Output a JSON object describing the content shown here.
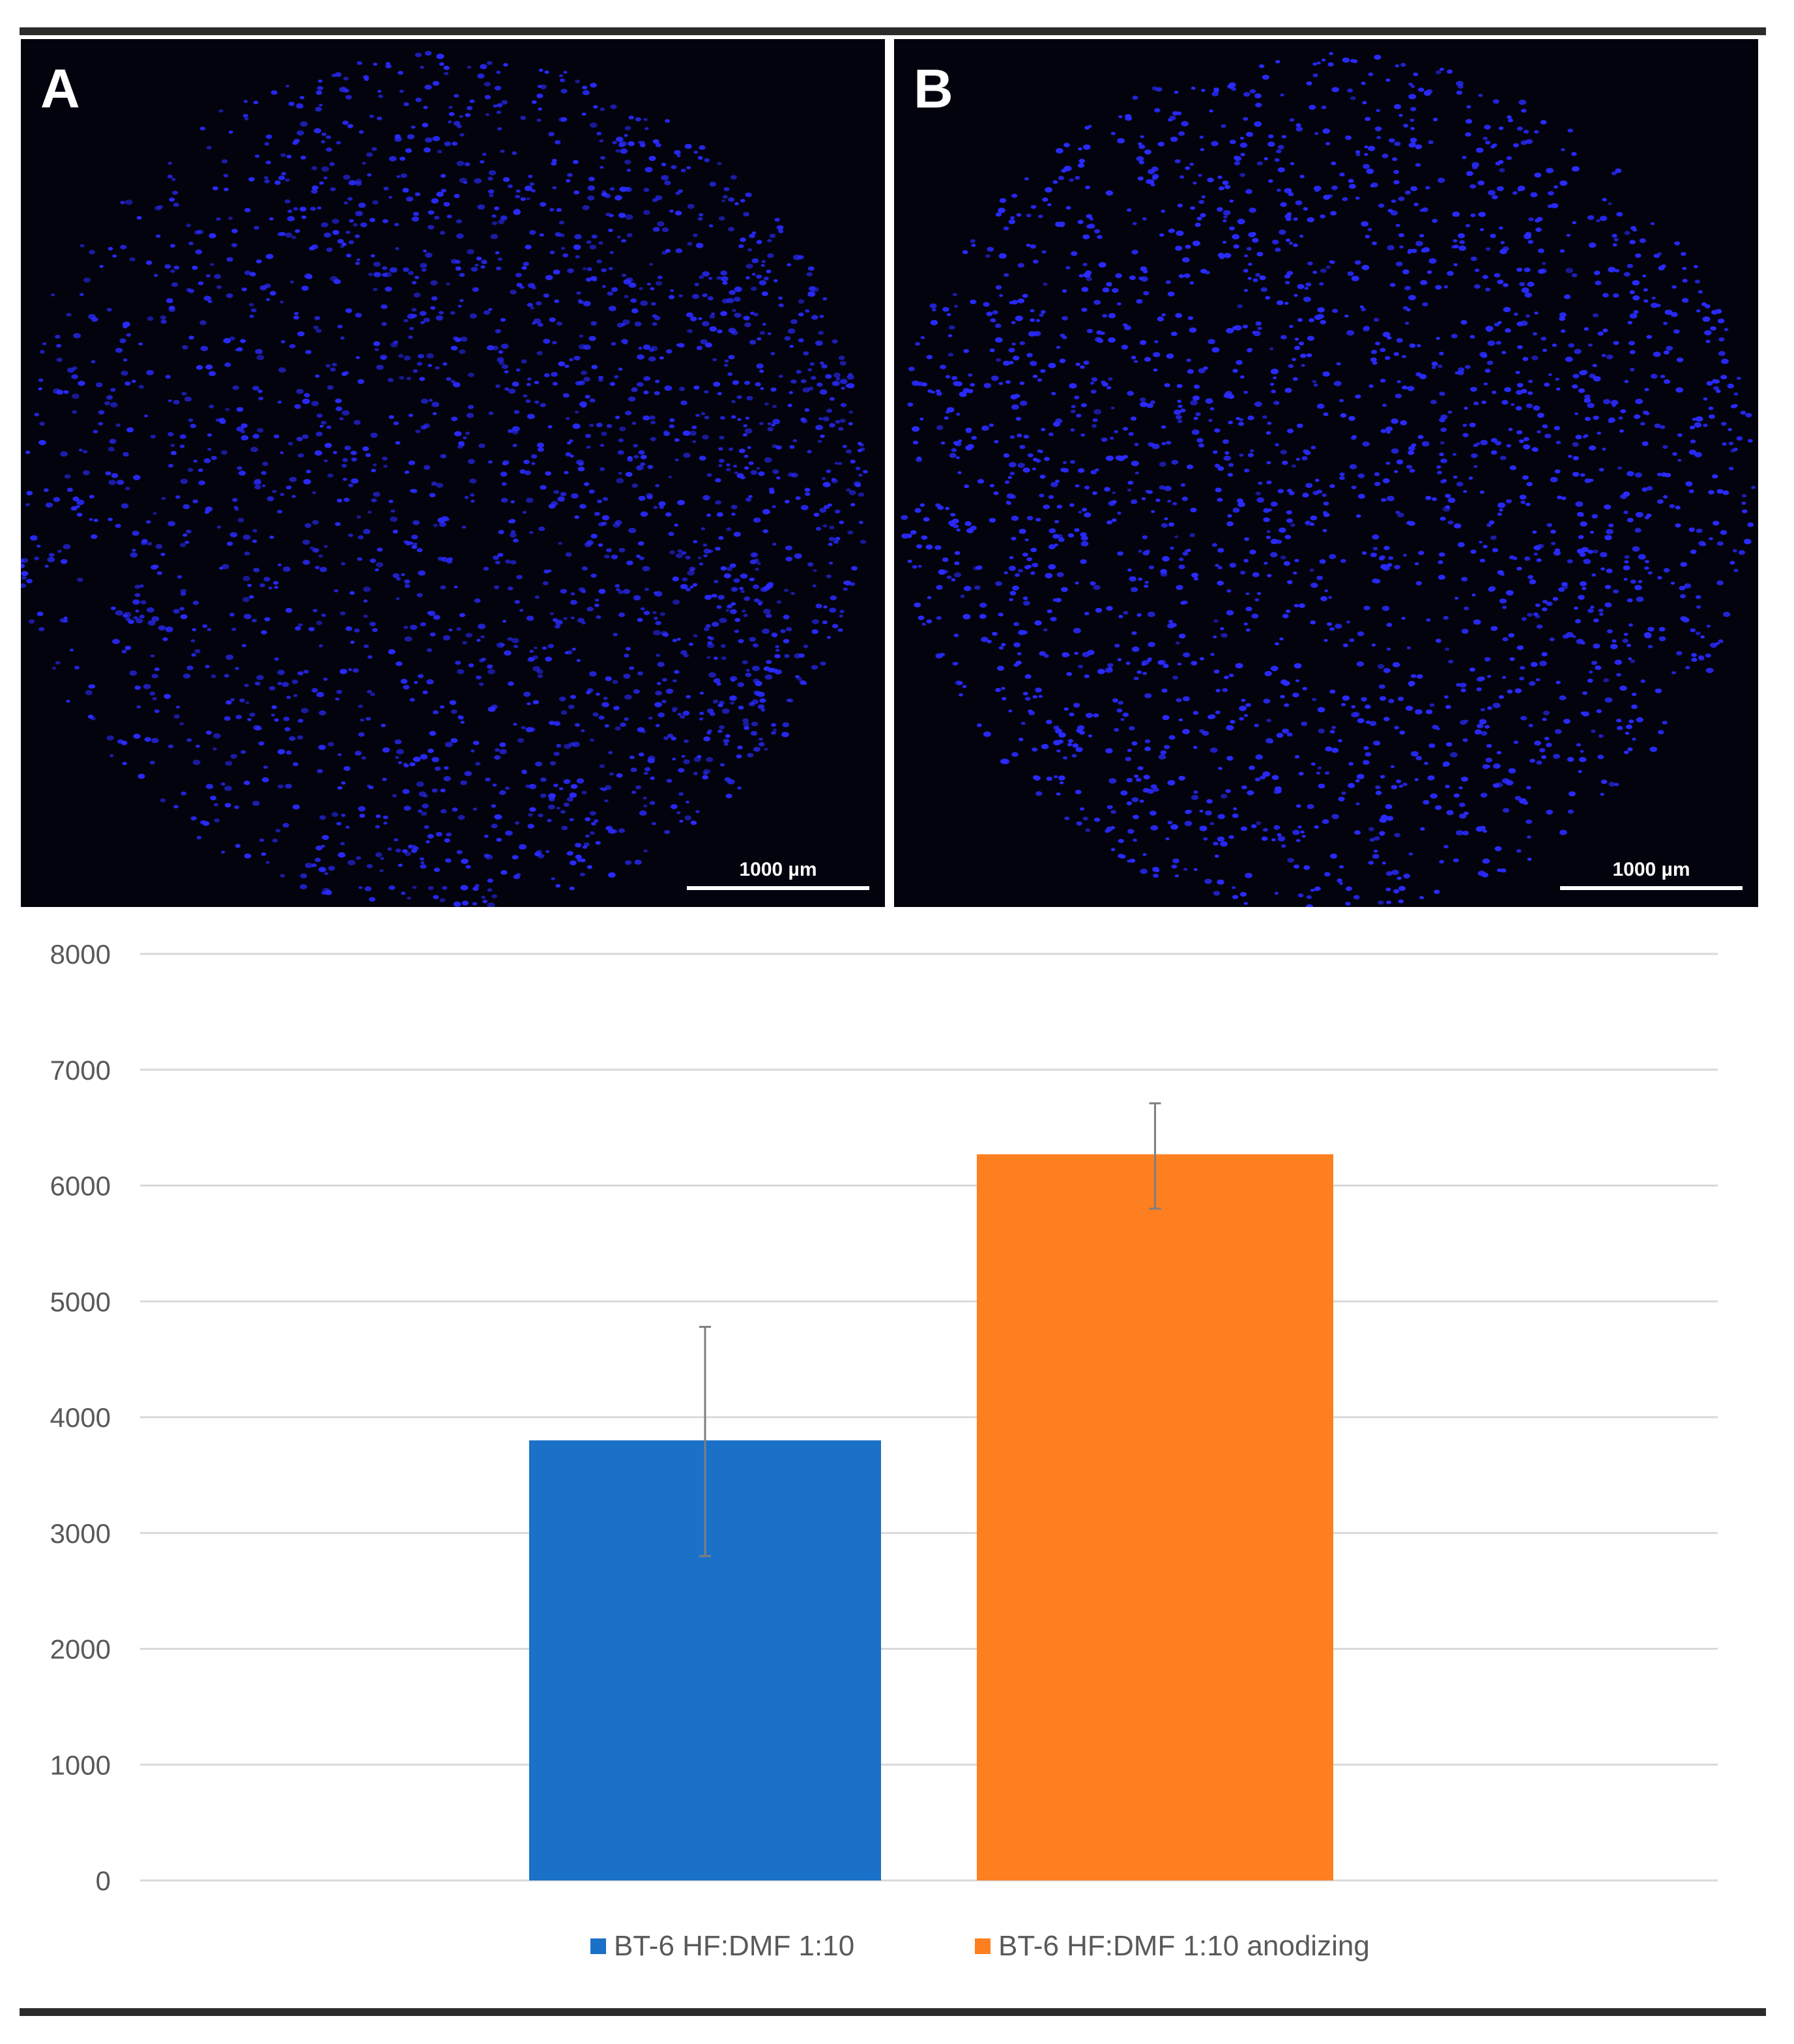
{
  "panels": [
    {
      "letter": "A",
      "scale_label": "1000 µm"
    },
    {
      "letter": "B",
      "scale_label": "1000 µm"
    }
  ],
  "colors": {
    "nuclei": "#2a2bff",
    "series_1": "#1b70c8",
    "series_2": "#fd7f20",
    "grid": "#d9d9d9",
    "axis_text": "#595959",
    "error_bar": "#7f7f7f"
  },
  "chart_data": {
    "type": "bar",
    "title": "",
    "xlabel": "",
    "ylabel": "",
    "ylim": [
      0,
      8000
    ],
    "yticks": [
      0,
      1000,
      2000,
      3000,
      4000,
      5000,
      6000,
      7000,
      8000
    ],
    "grid": true,
    "legend_position": "bottom",
    "series": [
      {
        "name": "BT-6 HF:DMF 1:10",
        "value": 3800,
        "error_low": 2800,
        "error_high": 4780,
        "color": "#1b70c8"
      },
      {
        "name": "BT-6 HF:DMF 1:10 anodizing",
        "value": 6270,
        "error_low": 5800,
        "error_high": 6710,
        "color": "#fd7f20"
      }
    ]
  }
}
